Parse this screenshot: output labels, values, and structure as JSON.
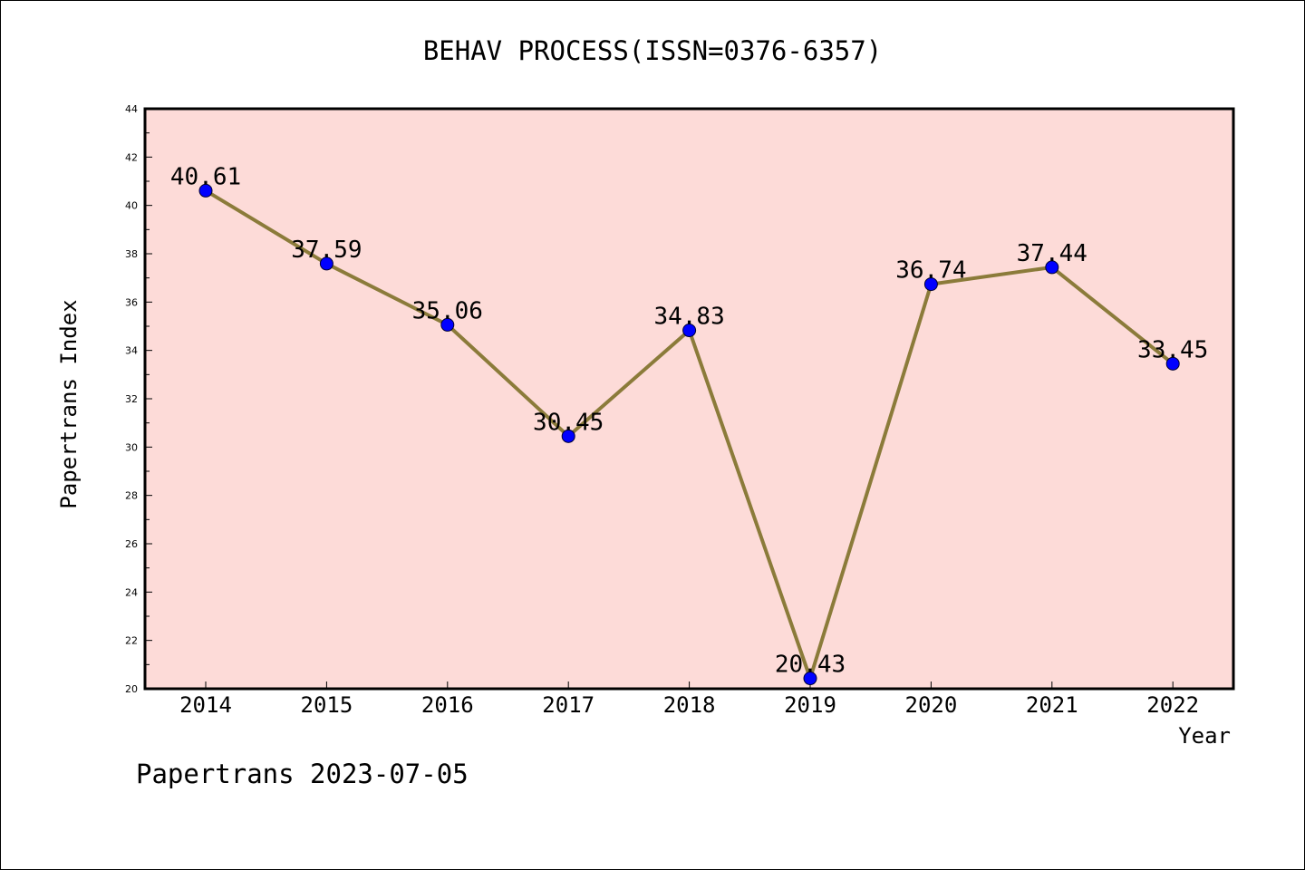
{
  "chart_data": {
    "type": "line",
    "title": "BEHAV PROCESS(ISSN=0376-6357)",
    "xlabel": "Year",
    "ylabel": "Papertrans Index",
    "categories": [
      "2014",
      "2015",
      "2016",
      "2017",
      "2018",
      "2019",
      "2020",
      "2021",
      "2022"
    ],
    "values": [
      40.61,
      37.59,
      35.06,
      30.45,
      34.83,
      20.43,
      36.74,
      37.44,
      33.45
    ],
    "data_labels": [
      "40.61",
      "37.59",
      "35.06",
      "30.45",
      "34.83",
      "20.43",
      "36.74",
      "37.44",
      "33.45"
    ],
    "ylim": [
      20,
      44
    ],
    "yticks": [
      "20",
      "22",
      "24",
      "26",
      "28",
      "30",
      "32",
      "34",
      "36",
      "38",
      "40",
      "42",
      "44"
    ],
    "grid": false,
    "colors": {
      "plot_background": "#fddbd8",
      "line": "#8b7b3a",
      "marker": "#0000ff"
    }
  },
  "footer": "Papertrans 2023-07-05"
}
